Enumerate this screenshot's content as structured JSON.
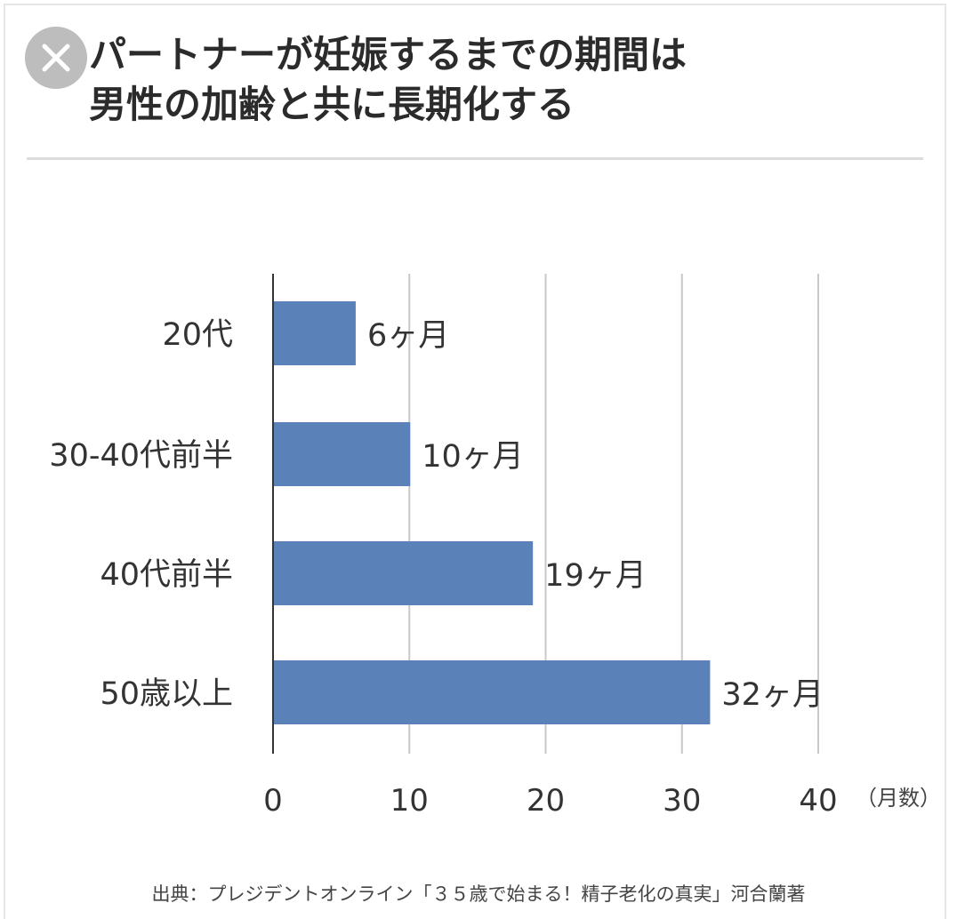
{
  "title_lines": [
    "パートナーが妊娠するまでの期間は",
    "男性の加齢と共に長期化する"
  ],
  "unit": "（月数）",
  "source": "出典：プレジデントオンライン「３５歳で始まる！精子老化の真実」河合蘭著",
  "close_icon": "close-icon",
  "colors": {
    "bar": "#5b82b8",
    "grid": "#c8c8c8",
    "axis": "#333333"
  },
  "chart_data": {
    "type": "bar",
    "orientation": "horizontal",
    "categories": [
      "20代",
      "30-40代前半",
      "40代前半",
      "50歳以上"
    ],
    "values": [
      6,
      10,
      19,
      32
    ],
    "data_labels": [
      "6ヶ月",
      "10ヶ月",
      "19ヶ月",
      "32ヶ月"
    ],
    "xlim": [
      0,
      40
    ],
    "xticks": [
      0,
      10,
      20,
      30,
      40
    ],
    "grid": true,
    "legend": "none"
  }
}
